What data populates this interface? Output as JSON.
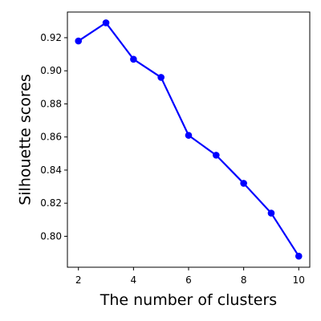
{
  "chart_data": {
    "type": "line",
    "title": "",
    "xlabel": "The number of clusters",
    "ylabel": "Silhouette scores",
    "x": [
      2,
      3,
      4,
      5,
      6,
      7,
      8,
      9,
      10
    ],
    "series": [
      {
        "values": [
          0.918,
          0.929,
          0.907,
          0.896,
          0.861,
          0.849,
          0.832,
          0.814,
          0.788
        ],
        "color": "#0000ff",
        "marker": "circle"
      }
    ],
    "xlim": [
      1.6,
      10.4
    ],
    "ylim": [
      0.7813,
      0.9355
    ],
    "xticks": [
      2,
      4,
      6,
      8,
      10
    ],
    "yticks": [
      0.8,
      0.82,
      0.84,
      0.86,
      0.88,
      0.9,
      0.92
    ],
    "ytick_labels": [
      "0.80",
      "0.82",
      "0.84",
      "0.86",
      "0.88",
      "0.90",
      "0.92"
    ],
    "grid": false,
    "legend": "none"
  }
}
